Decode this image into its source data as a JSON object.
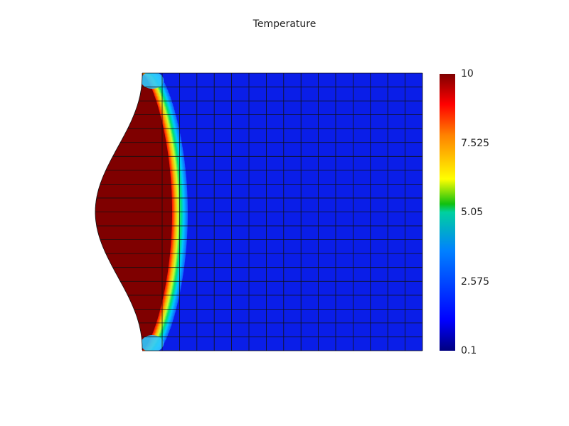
{
  "chart_data": {
    "type": "heatmap",
    "title": "Temperature",
    "variable": "Temperature",
    "colorscale": "jet",
    "colorbar": {
      "min": 0.1,
      "max": 10,
      "tick_labels": [
        "10",
        "7.525",
        "5.05",
        "2.575",
        "0.1"
      ],
      "tick_values": [
        10,
        7.525,
        5.05,
        2.575,
        0.1
      ]
    },
    "field_description": "Deformed finite-element mesh; hot region (value 10) bulging on the left, cooling sharply to ~1 across a thin front",
    "mesh": {
      "columns": 15,
      "rows": 20,
      "grid": true
    },
    "background_value": 1.2,
    "hot_value": 10
  }
}
